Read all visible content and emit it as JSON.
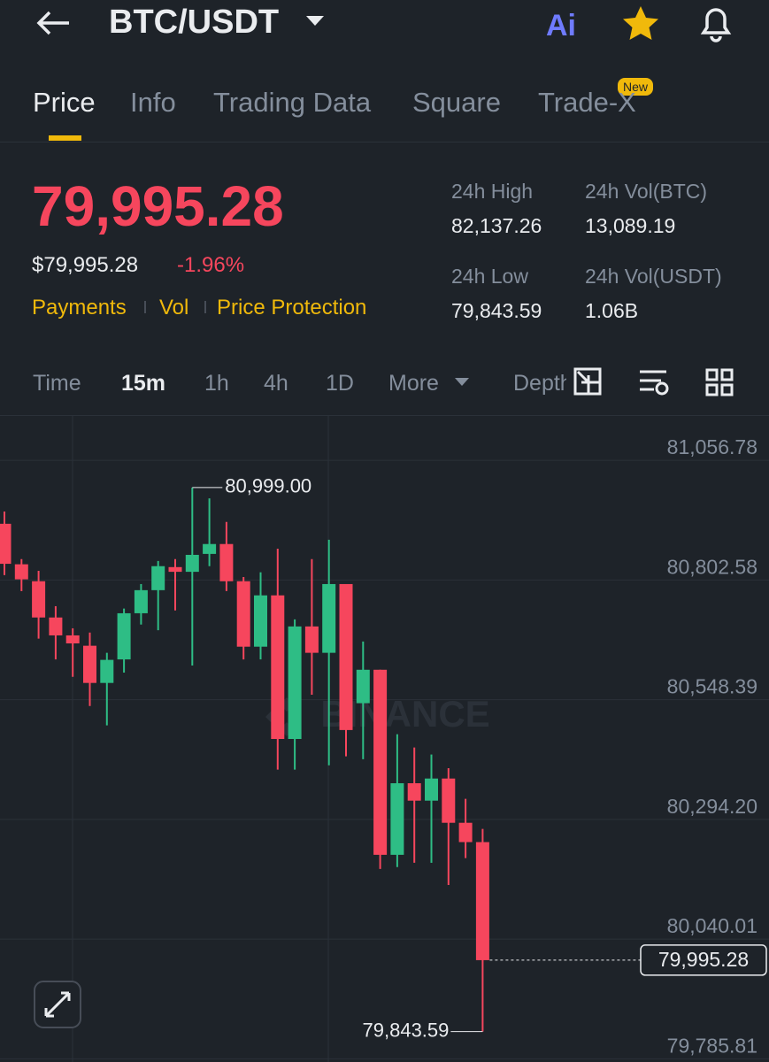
{
  "header": {
    "pair": "BTC/USDT",
    "ai_label": "Ai"
  },
  "tabs": [
    "Price",
    "Info",
    "Trading Data",
    "Square",
    "Trade-X"
  ],
  "new_badge": "New",
  "price": {
    "last": "79,995.28",
    "usd": "$79,995.28",
    "change": "-1.96%"
  },
  "links": [
    "Payments",
    "Vol",
    "Price Protection"
  ],
  "stats": [
    {
      "label": "24h High",
      "value": "82,137.26"
    },
    {
      "label": "24h Vol(BTC)",
      "value": "13,089.19"
    },
    {
      "label": "24h Low",
      "value": "79,843.59"
    },
    {
      "label": "24h Vol(USDT)",
      "value": "1.06B"
    }
  ],
  "intervals": [
    "Time",
    "15m",
    "1h",
    "4h",
    "1D",
    "More",
    "Depth"
  ],
  "chart_data": {
    "type": "candlestick",
    "watermark": "BINANCE",
    "open": [
      80922,
      80836,
      80800,
      80723,
      80685,
      80663,
      80584,
      80634,
      80732,
      80781,
      80830,
      80820,
      80858,
      80879,
      80800,
      80661,
      80770,
      80465,
      80704,
      80648,
      80794,
      80541,
      80612,
      80219,
      80371,
      80334,
      80381,
      80287,
      80246
    ],
    "high": [
      80948,
      80847,
      80822,
      80747,
      80700,
      80691,
      80648,
      80742,
      80794,
      80843,
      80847,
      80999,
      80976,
      80926,
      80809,
      80819,
      80869,
      80719,
      80847,
      80888,
      80794,
      80672,
      80612,
      80475,
      80447,
      80432,
      80403,
      80338,
      80274
    ],
    "low": [
      80813,
      80779,
      80678,
      80634,
      80597,
      80535,
      80494,
      80606,
      80708,
      80696,
      80738,
      80621,
      80832,
      80779,
      80634,
      80634,
      80400,
      80400,
      80559,
      80409,
      80428,
      80422,
      80189,
      80193,
      80202,
      80202,
      80155,
      80212,
      79843.59
    ],
    "close": [
      80837,
      80804,
      80723,
      80685,
      80668,
      80584,
      80633,
      80732,
      80781,
      80832,
      80820,
      80856,
      80879,
      80800,
      80661,
      80770,
      80465,
      80704,
      80648,
      80794,
      80484,
      80612,
      80219,
      80371,
      80334,
      80381,
      80287,
      80246,
      79995.28
    ],
    "up_color": "#2ebd85",
    "down_color": "#f6465d",
    "max_label": "80,999.00",
    "min_label": "79,843.59",
    "last_label": "79,995.28",
    "ylim": [
      79779,
      81151
    ],
    "yticks": [
      {
        "value": 81056.78,
        "label": "81,056.78"
      },
      {
        "value": 80802.58,
        "label": "80,802.58"
      },
      {
        "value": 80548.39,
        "label": "80,548.39"
      },
      {
        "value": 80294.2,
        "label": "80,294.20"
      },
      {
        "value": 80040.01,
        "label": "80,040.01"
      },
      {
        "value": 79785.81,
        "label": "79,785.81"
      }
    ],
    "grid": true
  }
}
